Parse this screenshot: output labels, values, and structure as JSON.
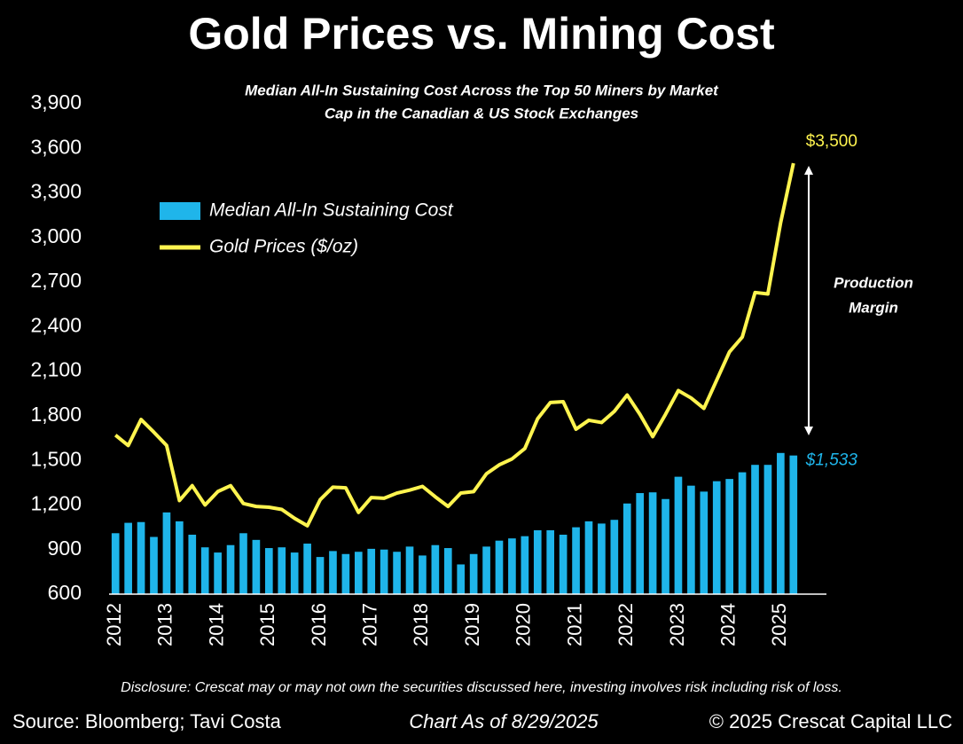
{
  "chart_data": {
    "type": "bar_line",
    "title": "Gold Prices vs. Mining Cost",
    "subtitle": [
      "Median All-In Sustaining Cost Across the Top 50 Miners by Market",
      "Cap in the Canadian & US Stock Exchanges"
    ],
    "categories": [
      "2012",
      null,
      null,
      null,
      "2013",
      null,
      null,
      null,
      "2014",
      null,
      null,
      null,
      "2015",
      null,
      null,
      null,
      "2016",
      null,
      null,
      null,
      "2017",
      null,
      null,
      null,
      "2018",
      null,
      null,
      null,
      "2019",
      null,
      null,
      null,
      "2020",
      null,
      null,
      null,
      "2021",
      null,
      null,
      null,
      "2022",
      null,
      null,
      null,
      "2023",
      null,
      null,
      null,
      "2024",
      null,
      null,
      null,
      "2025",
      null
    ],
    "series": [
      {
        "name": "Median All-In Sustaining Cost",
        "type": "bar",
        "color": "#1fb5ea",
        "values": [
          1010,
          1080,
          1085,
          985,
          1150,
          1090,
          1000,
          915,
          880,
          930,
          1010,
          965,
          910,
          915,
          880,
          940,
          850,
          890,
          870,
          885,
          905,
          900,
          885,
          920,
          860,
          930,
          910,
          800,
          870,
          920,
          960,
          975,
          990,
          1030,
          1030,
          1000,
          1050,
          1090,
          1075,
          1100,
          1210,
          1280,
          1285,
          1240,
          1390,
          1330,
          1290,
          1360,
          1375,
          1420,
          1470,
          1470,
          1550,
          1533
        ],
        "value_labels": [
          null,
          null,
          null,
          null,
          null,
          null,
          null,
          null,
          null,
          null,
          null,
          null,
          null,
          null,
          null,
          null,
          null,
          null,
          null,
          null,
          null,
          null,
          null,
          null,
          null,
          null,
          null,
          null,
          null,
          null,
          null,
          null,
          null,
          null,
          null,
          null,
          null,
          null,
          null,
          null,
          null,
          null,
          null,
          null,
          null,
          null,
          null,
          null,
          null,
          null,
          null,
          null,
          null,
          "$1,533"
        ]
      },
      {
        "name": "Gold Prices ($/oz)",
        "type": "line",
        "color": "#fff44f",
        "values": [
          1670,
          1600,
          1775,
          1690,
          1600,
          1230,
          1330,
          1200,
          1290,
          1330,
          1210,
          1190,
          1185,
          1170,
          1110,
          1060,
          1235,
          1320,
          1315,
          1150,
          1250,
          1245,
          1280,
          1300,
          1325,
          1255,
          1190,
          1280,
          1290,
          1410,
          1470,
          1510,
          1580,
          1780,
          1890,
          1895,
          1710,
          1770,
          1755,
          1830,
          1940,
          1810,
          1660,
          1810,
          1970,
          1920,
          1850,
          2040,
          2230,
          2330,
          2630,
          2620,
          3100,
          3500
        ],
        "value_labels": [
          null,
          null,
          null,
          null,
          null,
          null,
          null,
          null,
          null,
          null,
          null,
          null,
          null,
          null,
          null,
          null,
          null,
          null,
          null,
          null,
          null,
          null,
          null,
          null,
          null,
          null,
          null,
          null,
          null,
          null,
          null,
          null,
          null,
          null,
          null,
          null,
          null,
          null,
          null,
          null,
          null,
          null,
          null,
          null,
          null,
          null,
          null,
          null,
          null,
          null,
          null,
          null,
          null,
          "$3,500"
        ]
      }
    ],
    "ylim": [
      600,
      3900
    ],
    "yticks": [
      600,
      900,
      {
        "value": 1200,
        "label": "1,200"
      },
      {
        "value": 1500,
        "label": "1,500"
      },
      {
        "value": 1800,
        "label": "1,800"
      },
      {
        "value": 2100,
        "label": "2,100"
      },
      {
        "value": 2400,
        "label": "2,400"
      },
      {
        "value": 2700,
        "label": "2,700"
      },
      {
        "value": 3000,
        "label": "3,000"
      },
      {
        "value": 3300,
        "label": "3,300"
      },
      {
        "value": 3600,
        "label": "3,600"
      },
      {
        "value": 3900,
        "label": "3,900"
      }
    ],
    "grid": false,
    "legend": "upper left",
    "annotation": [
      "Production",
      "Margin"
    ],
    "disclosure": "Disclosure: Crescat may or may not own the securities discussed here, investing involves risk including risk of loss.",
    "source": "Source: Bloomberg; Tavi Costa",
    "chart_date": "Chart As of 8/29/2025",
    "copyright": "© 2025 Crescat Capital LLC"
  }
}
